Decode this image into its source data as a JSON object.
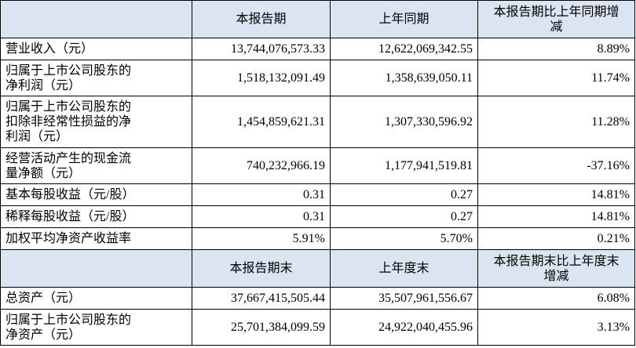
{
  "sections": [
    {
      "header": [
        [],
        [
          "本报告期"
        ],
        [
          "上年同期"
        ],
        [
          "本报告期比上年同期增",
          "减"
        ]
      ],
      "rows": [
        {
          "label": [
            "营业收入（元）"
          ],
          "values": [
            "13,744,076,573.33",
            "12,622,069,342.55",
            "8.89%"
          ]
        },
        {
          "label": [
            "归属于上市公司股东的",
            "净利润（元）"
          ],
          "values": [
            "1,518,132,091.49",
            "1,358,639,050.11",
            "11.74%"
          ]
        },
        {
          "label": [
            "归属于上市公司股东的",
            "扣除非经常性损益的净",
            "利润（元）"
          ],
          "values": [
            "1,454,859,621.31",
            "1,307,330,596.92",
            "11.28%"
          ]
        },
        {
          "label": [
            "经营活动产生的现金流",
            "量净额（元）"
          ],
          "values": [
            "740,232,966.19",
            "1,177,941,519.81",
            "-37.16%"
          ]
        },
        {
          "label": [
            "基本每股收益（元/股）"
          ],
          "values": [
            "0.31",
            "0.27",
            "14.81%"
          ]
        },
        {
          "label": [
            "稀释每股收益（元/股）"
          ],
          "values": [
            "0.31",
            "0.27",
            "14.81%"
          ]
        },
        {
          "label": [
            "加权平均净资产收益率"
          ],
          "values": [
            "5.91%",
            "5.70%",
            "0.21%"
          ]
        }
      ]
    },
    {
      "header": [
        [],
        [
          "本报告期末"
        ],
        [
          "上年度末"
        ],
        [
          "本报告期末比上年度末",
          "增减"
        ]
      ],
      "rows": [
        {
          "label": [
            "总资产（元）"
          ],
          "values": [
            "37,667,415,505.44",
            "35,507,961,556.67",
            "6.08%"
          ]
        },
        {
          "label": [
            "归属于上市公司股东的",
            "净资产（元）"
          ],
          "values": [
            "25,701,384,099.59",
            "24,922,040,455.96",
            "3.13%"
          ]
        }
      ]
    }
  ]
}
